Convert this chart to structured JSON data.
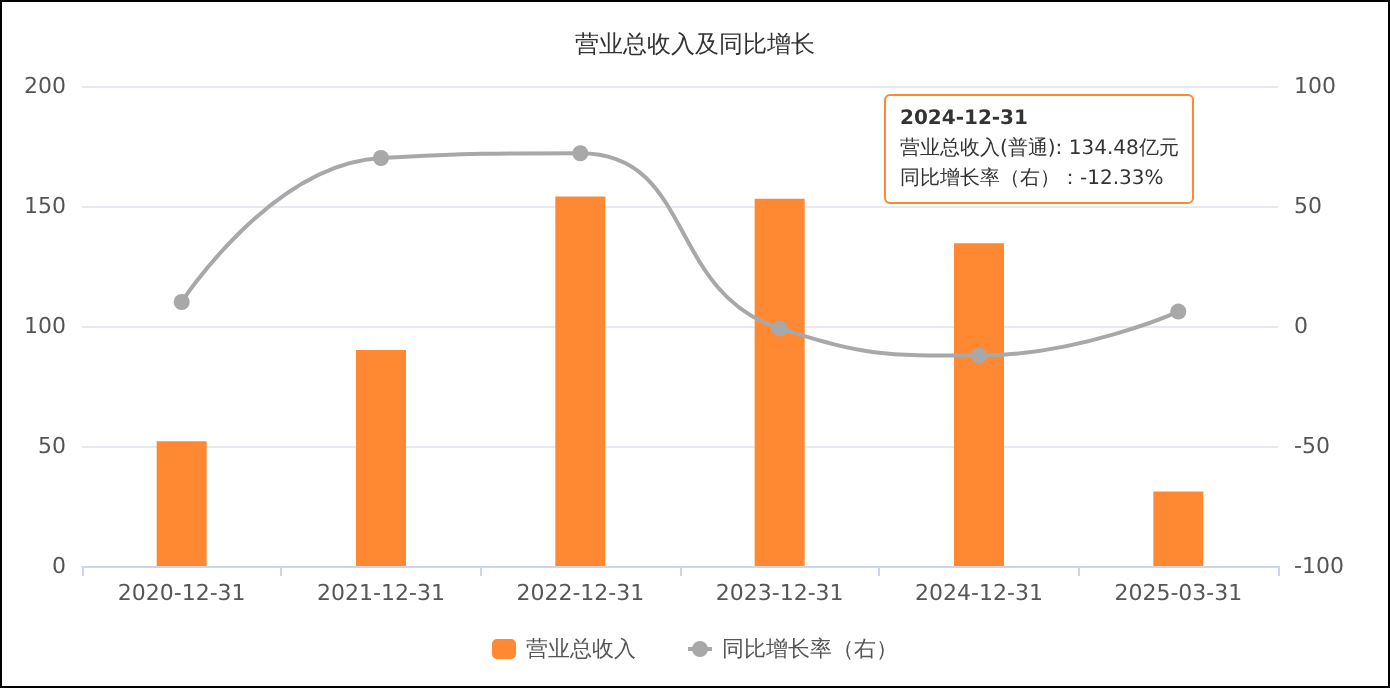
{
  "chart_data": {
    "type": "bar",
    "title": "营业总收入及同比增长",
    "categories": [
      "2020-12-31",
      "2021-12-31",
      "2022-12-31",
      "2023-12-31",
      "2024-12-31",
      "2025-03-31"
    ],
    "series": [
      {
        "name": "营业总收入",
        "color": "#ff8833",
        "values": [
          52,
          90,
          154,
          153,
          134.48,
          31
        ]
      },
      {
        "name": "同比增长率（右）",
        "type": "line",
        "axis": "y2",
        "color": "#a8a8a8",
        "values": [
          10,
          70,
          72,
          -1,
          -12.33,
          6
        ]
      }
    ],
    "ylim": [
      0,
      200
    ],
    "yticks": [
      0,
      50,
      100,
      150,
      200
    ],
    "y2lim": [
      -100,
      100
    ],
    "y2ticks": [
      -100,
      -50,
      0,
      50,
      100
    ],
    "grid": "y",
    "legend": "bottom",
    "marker": "circle",
    "line_style": "solid",
    "annotations": [
      "2024-12-31",
      "营业总收入(普通): 134.48亿元",
      "同比增长率（右）：-12.33%"
    ]
  }
}
